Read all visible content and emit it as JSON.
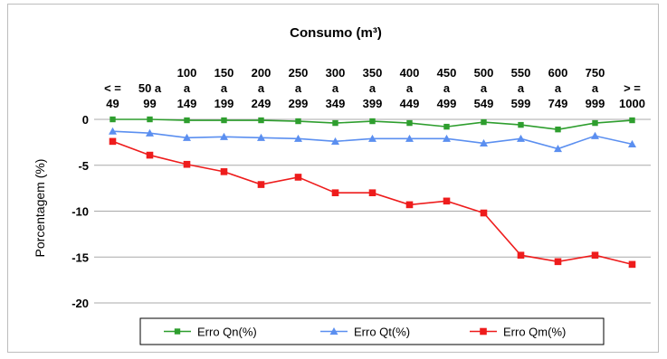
{
  "chart_data": {
    "type": "line",
    "title": "Consumo (m³)",
    "ylabel": "Porcentagem (%)",
    "xlabel": "",
    "ylim": [
      -20,
      0
    ],
    "yticks": [
      0,
      -5,
      -10,
      -15,
      -20
    ],
    "grid": true,
    "legend_position": "bottom",
    "categories": [
      [
        "< =",
        "49"
      ],
      [
        "50 a",
        "99"
      ],
      [
        "100",
        "a",
        "149"
      ],
      [
        "150",
        "a",
        "199"
      ],
      [
        "200",
        "a",
        "249"
      ],
      [
        "250",
        "a",
        "299"
      ],
      [
        "300",
        "a",
        "349"
      ],
      [
        "350",
        "a",
        "399"
      ],
      [
        "400",
        "a",
        "449"
      ],
      [
        "450",
        "a",
        "499"
      ],
      [
        "500",
        "a",
        "549"
      ],
      [
        "550",
        "a",
        "599"
      ],
      [
        "600",
        "a",
        "749"
      ],
      [
        "750",
        "a",
        "999"
      ],
      [
        "> =",
        "1000"
      ]
    ],
    "series": [
      {
        "name": "Erro Qn(%)",
        "color": "#2e9e2e",
        "marker": "square",
        "values": [
          0,
          0,
          -0.1,
          -0.1,
          -0.1,
          -0.2,
          -0.4,
          -0.2,
          -0.4,
          -0.8,
          -0.3,
          -0.6,
          -1.1,
          -0.4,
          -0.1
        ]
      },
      {
        "name": "Erro Qt(%)",
        "color": "#5b8ff0",
        "marker": "triangle",
        "values": [
          -1.3,
          -1.5,
          -2.0,
          -1.9,
          -2.0,
          -2.1,
          -2.4,
          -2.1,
          -2.1,
          -2.1,
          -2.6,
          -2.1,
          -3.2,
          -1.8,
          -2.7
        ]
      },
      {
        "name": "Erro Qm(%)",
        "color": "#ee1c1c",
        "marker": "square",
        "values": [
          -2.4,
          -3.9,
          -4.9,
          -5.7,
          -7.1,
          -6.3,
          -8.0,
          -8.0,
          -9.3,
          -8.9,
          -10.2,
          -14.8,
          -15.5,
          -14.8,
          -15.8
        ]
      }
    ]
  }
}
